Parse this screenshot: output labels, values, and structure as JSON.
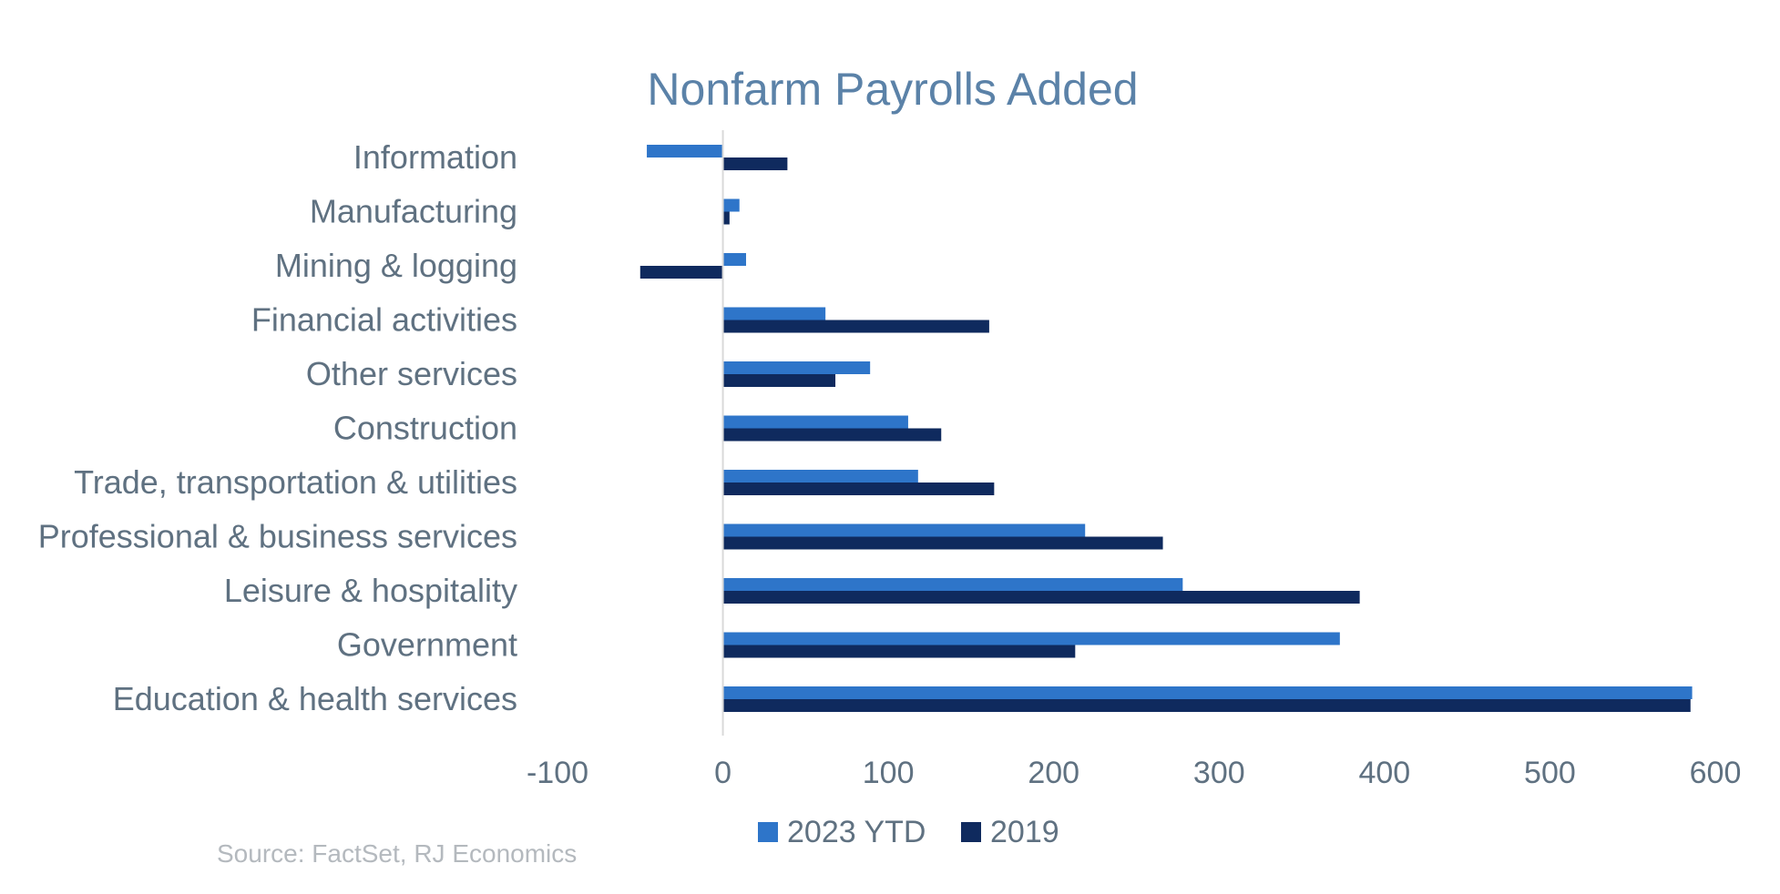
{
  "chart_data": {
    "type": "bar",
    "orientation": "horizontal",
    "title": "Nonfarm Payrolls Added",
    "categories": [
      "Information",
      "Manufacturing",
      "Mining & logging",
      "Financial activities",
      "Other services",
      "Construction",
      "Trade, transportation & utilities",
      "Professional & business services",
      "Leisure & hospitality",
      "Government",
      "Education & health services"
    ],
    "series": [
      {
        "name": "2023 YTD",
        "color": "#2e75c9",
        "values": [
          -46,
          10,
          14,
          62,
          89,
          112,
          118,
          219,
          278,
          373,
          586
        ]
      },
      {
        "name": "2019",
        "color": "#0f2a5e",
        "values": [
          39,
          4,
          -50,
          161,
          68,
          132,
          164,
          266,
          385,
          213,
          585
        ]
      }
    ],
    "xlim": [
      -100,
      600
    ],
    "xticks": [
      "-100",
      "0",
      "100",
      "200",
      "300",
      "400",
      "500",
      "600"
    ],
    "grid": false,
    "legend_position": "bottom",
    "source": "Source: FactSet, RJ Economics"
  }
}
